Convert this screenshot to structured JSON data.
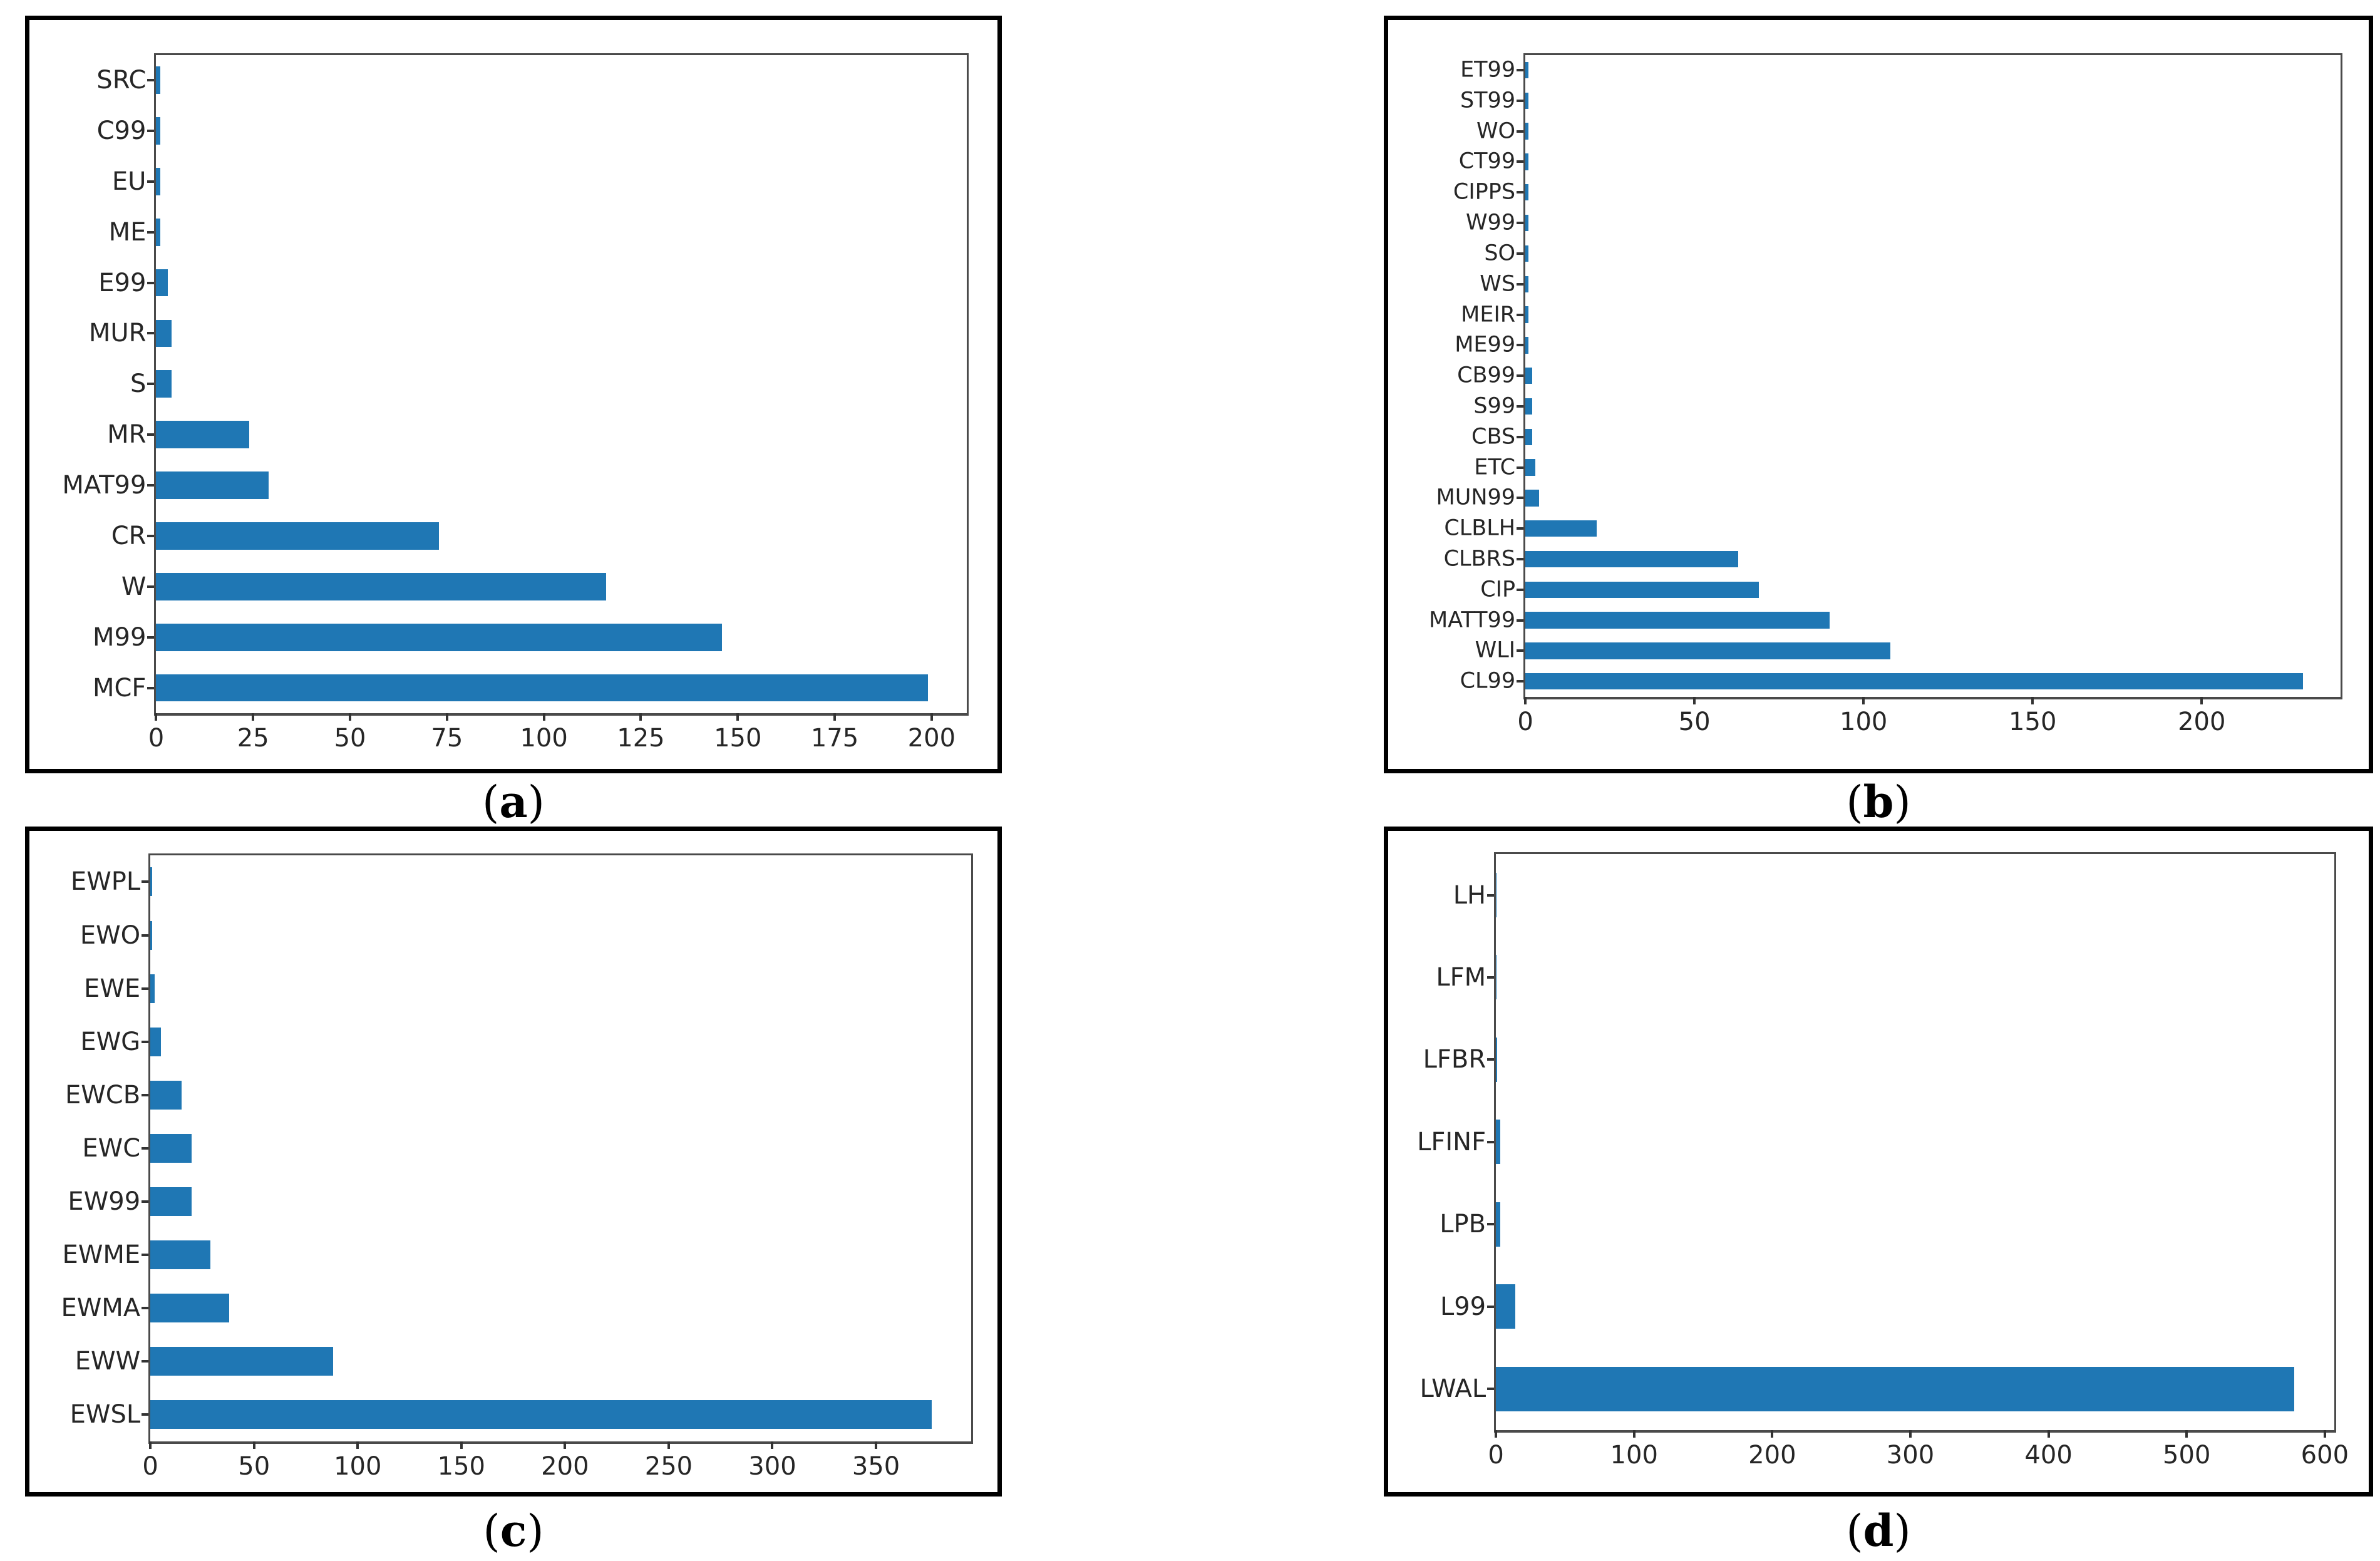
{
  "style": {
    "bar_color": "#1f77b4",
    "axis_color": "#4a4a4a",
    "tick_color": "#333333",
    "text_color": "#262626",
    "panel_border_color": "#000000",
    "background": "#ffffff"
  },
  "captions": {
    "open": "(",
    "close": ")"
  },
  "chart_data": [
    {
      "id": "a",
      "type": "bar",
      "orientation": "horizontal",
      "caption_letter": "a",
      "title": "",
      "xlabel": "",
      "ylabel": "",
      "grid": false,
      "categories": [
        "SRC",
        "C99",
        "EU",
        "ME",
        "E99",
        "MUR",
        "S",
        "MR",
        "MAT99",
        "CR",
        "W",
        "M99",
        "MCF"
      ],
      "values": [
        1,
        1,
        1,
        1,
        3,
        4,
        4,
        24,
        29,
        73,
        116,
        146,
        199
      ],
      "xticks": [
        0,
        25,
        50,
        75,
        100,
        125,
        150,
        175,
        200
      ],
      "xlim": [
        0,
        209
      ]
    },
    {
      "id": "b",
      "type": "bar",
      "orientation": "horizontal",
      "caption_letter": "b",
      "title": "",
      "xlabel": "",
      "ylabel": "",
      "grid": false,
      "categories": [
        "ET99",
        "ST99",
        "WO",
        "CT99",
        "CIPPS",
        "W99",
        "SO",
        "WS",
        "MEIR",
        "ME99",
        "CB99",
        "S99",
        "CBS",
        "ETC",
        "MUN99",
        "CLBLH",
        "CLBRS",
        "CIP",
        "MATT99",
        "WLI",
        "CL99"
      ],
      "values": [
        1,
        1,
        1,
        1,
        1,
        1,
        1,
        1,
        1,
        1,
        2,
        2,
        2,
        3,
        4,
        21,
        63,
        69,
        90,
        108,
        230
      ],
      "xticks": [
        0,
        50,
        100,
        150,
        200
      ],
      "xlim": [
        0,
        241
      ]
    },
    {
      "id": "c",
      "type": "bar",
      "orientation": "horizontal",
      "caption_letter": "c",
      "title": "",
      "xlabel": "",
      "ylabel": "",
      "grid": false,
      "categories": [
        "EWPL",
        "EWO",
        "EWE",
        "EWG",
        "EWCB",
        "EWC",
        "EW99",
        "EWME",
        "EWMA",
        "EWW",
        "EWSL"
      ],
      "values": [
        1,
        1,
        2,
        5,
        15,
        20,
        20,
        29,
        38,
        88,
        377
      ],
      "xticks": [
        0,
        50,
        100,
        150,
        200,
        250,
        300,
        350
      ],
      "xlim": [
        0,
        396
      ]
    },
    {
      "id": "d",
      "type": "bar",
      "orientation": "horizontal",
      "caption_letter": "d",
      "title": "",
      "xlabel": "",
      "ylabel": "",
      "grid": false,
      "categories": [
        "LH",
        "LFM",
        "LFBR",
        "LFINF",
        "LPB",
        "L99",
        "LWAL"
      ],
      "values": [
        0.5,
        0.5,
        1,
        3,
        3,
        14,
        578
      ],
      "xticks": [
        0,
        100,
        200,
        300,
        400,
        500,
        600
      ],
      "xlim": [
        0,
        607
      ]
    }
  ]
}
